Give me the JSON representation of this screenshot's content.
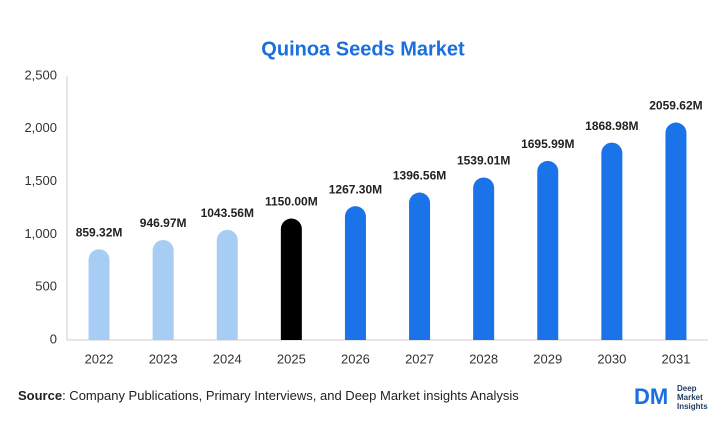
{
  "chart_data": {
    "type": "bar",
    "title": "Quinoa Seeds Market",
    "categories": [
      "2022",
      "2023",
      "2024",
      "2025",
      "2026",
      "2027",
      "2028",
      "2029",
      "2030",
      "2031"
    ],
    "values": [
      859.32,
      946.97,
      1043.56,
      1150.0,
      1267.3,
      1396.56,
      1539.01,
      1695.99,
      1868.98,
      2059.62
    ],
    "value_labels": [
      "859.32M",
      "946.97M",
      "1043.56M",
      "1150.00M",
      "1267.30M",
      "1396.56M",
      "1539.01M",
      "1695.99M",
      "1868.98M",
      "2059.62M"
    ],
    "colors": [
      "#a8cdf5",
      "#a8cdf5",
      "#a8cdf5",
      "#000000",
      "#1a73e8",
      "#1a73e8",
      "#1a73e8",
      "#1a73e8",
      "#1a73e8",
      "#1a73e8"
    ],
    "ylim": [
      0,
      2500
    ],
    "yticks": [
      0,
      500,
      {
        "value": 1000,
        "label": "1,000"
      },
      {
        "value": 1500,
        "label": "1,500"
      },
      {
        "value": 2000,
        "label": "2,000"
      },
      {
        "value": 2500,
        "label": "2,500"
      }
    ],
    "grid": false
  },
  "source": {
    "label": "Source",
    "text": ": Company Publications, Primary Interviews, and Deep Market insights Analysis"
  },
  "logo": {
    "mark": "DM",
    "lines": [
      "Deep",
      "Market",
      "Insights"
    ]
  }
}
